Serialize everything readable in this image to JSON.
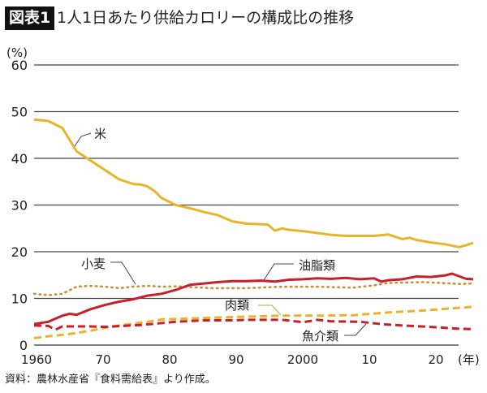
{
  "figure_tag": "図表1",
  "title": "1人1日あたり供給カロリーの構成比の推移",
  "source": "資料：農林水産省『食料需給表』より作成。",
  "chart_data": {
    "type": "line",
    "title": "1人1日あたり供給カロリーの構成比の推移",
    "ylabel": "(%)",
    "xlabel": "(年)",
    "ylim": [
      0,
      60
    ],
    "xlim": [
      1960,
      2022
    ],
    "yticks": [
      0,
      10,
      20,
      30,
      40,
      50,
      60
    ],
    "xticks": [
      {
        "year": 1960,
        "label": "1960"
      },
      {
        "year": 1970,
        "label": "70"
      },
      {
        "year": 1980,
        "label": "80"
      },
      {
        "year": 1990,
        "label": "90"
      },
      {
        "year": 2000,
        "label": "2000"
      },
      {
        "year": 2010,
        "label": "10"
      },
      {
        "year": 2020,
        "label": "20"
      }
    ],
    "grid": true,
    "series": [
      {
        "name": "米",
        "color": "#e8b42a",
        "style": "solid",
        "x": [
          1960,
          1962,
          1964,
          1965,
          1966,
          1968,
          1970,
          1972,
          1974,
          1975,
          1976,
          1977,
          1978,
          1980,
          1982,
          1984,
          1986,
          1988,
          1990,
          1992,
          1993,
          1994,
          1995,
          1996,
          1998,
          2000,
          2002,
          2004,
          2006,
          2008,
          2010,
          2012,
          2013,
          2014,
          2016,
          2018,
          2020,
          2021,
          2022
        ],
        "y": [
          48.3,
          48,
          46.5,
          44,
          41.5,
          39.5,
          37.5,
          35.5,
          34.5,
          34.4,
          34,
          33,
          31.5,
          30,
          29.3,
          28.5,
          27.8,
          26.5,
          26,
          25.9,
          25.8,
          24.5,
          25,
          24.7,
          24.4,
          24,
          23.6,
          23.4,
          23.4,
          23.4,
          23.7,
          22.7,
          23,
          22.5,
          22,
          21.6,
          21,
          21.4,
          21.9
        ]
      },
      {
        "name": "小麦",
        "color": "#c98f3a",
        "style": "dotted",
        "x": [
          1960,
          1962,
          1964,
          1966,
          1968,
          1970,
          1972,
          1974,
          1976,
          1978,
          1980,
          1985,
          1990,
          1995,
          2000,
          2005,
          2008,
          2010,
          2015,
          2020,
          2022
        ],
        "y": [
          11,
          10.7,
          11,
          12.5,
          12.7,
          12.5,
          12.2,
          12.5,
          12.7,
          12.5,
          12.6,
          12.2,
          12.2,
          12.5,
          12.5,
          12.3,
          12.8,
          13.3,
          13.5,
          13.1,
          13.2
        ]
      },
      {
        "name": "油脂類",
        "color": "#c8202a",
        "style": "solid",
        "x": [
          1960,
          1962,
          1964,
          1965,
          1966,
          1968,
          1970,
          1972,
          1974,
          1976,
          1978,
          1980,
          1982,
          1984,
          1986,
          1988,
          1990,
          1992,
          1994,
          1996,
          1998,
          2000,
          2002,
          2004,
          2006,
          2008,
          2009,
          2010,
          2012,
          2014,
          2016,
          2018,
          2019,
          2021,
          2022
        ],
        "y": [
          4.5,
          5,
          6.3,
          6.7,
          6.5,
          7.7,
          8.6,
          9.3,
          9.8,
          10.6,
          11,
          11.8,
          12.9,
          13.2,
          13.5,
          13.7,
          13.7,
          13.8,
          13.6,
          14,
          14.1,
          14.3,
          14.2,
          14.4,
          14.1,
          14.3,
          13.6,
          13.9,
          14.1,
          14.7,
          14.6,
          14.9,
          15.3,
          14.2,
          14.1
        ]
      },
      {
        "name": "肉類",
        "color": "#e8b42a",
        "style": "dashed",
        "x": [
          1960,
          1962,
          1964,
          1966,
          1968,
          1970,
          1972,
          1974,
          1976,
          1978,
          1980,
          1984,
          1988,
          1990,
          1995,
          2000,
          2005,
          2010,
          2015,
          2020,
          2022
        ],
        "y": [
          1.5,
          1.9,
          2.2,
          2.6,
          3.1,
          3.7,
          4.2,
          4.6,
          5,
          5.5,
          5.6,
          5.8,
          6,
          6.1,
          6.3,
          6.3,
          6.4,
          7,
          7.4,
          8,
          8.2
        ]
      },
      {
        "name": "魚介類",
        "color": "#c8202a",
        "style": "dashed",
        "x": [
          1960,
          1962,
          1963,
          1964,
          1968,
          1970,
          1975,
          1980,
          1984,
          1988,
          1990,
          1995,
          1998,
          2000,
          2002,
          2006,
          2009,
          2012,
          2016,
          2020,
          2022
        ],
        "y": [
          4.2,
          4.1,
          3.3,
          4,
          4,
          3.9,
          4.3,
          5,
          5.3,
          5.3,
          5.4,
          5.4,
          4.9,
          5.4,
          5.1,
          5,
          4.5,
          4.2,
          3.9,
          3.5,
          3.4
        ]
      }
    ]
  }
}
